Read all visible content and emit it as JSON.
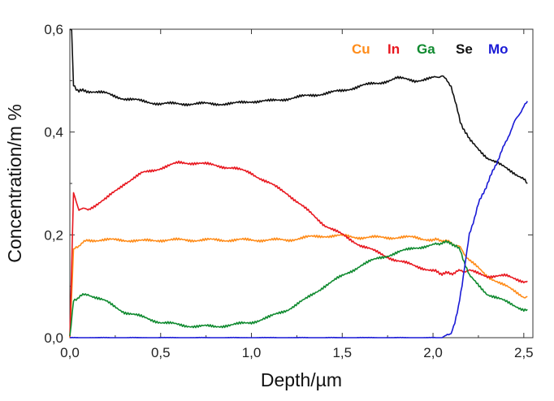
{
  "chart_data": {
    "type": "line",
    "xlabel": "Depth/µm",
    "ylabel": "Concentration/m %",
    "xlim": [
      0,
      2.55
    ],
    "ylim": [
      0,
      0.6
    ],
    "x_ticks": [
      0,
      0.5,
      1.0,
      1.5,
      2.0,
      2.5
    ],
    "x_tick_labels": [
      "0,0",
      "0,5",
      "1,0",
      "1,5",
      "2,0",
      "2,5"
    ],
    "y_ticks": [
      0,
      0.2,
      0.4,
      0.6
    ],
    "y_tick_labels": [
      "0,0",
      "0,2",
      "0,4",
      "0,6"
    ],
    "legend_position": "top-right",
    "series": [
      {
        "name": "Cu",
        "color": "#ff8c1a",
        "x": [
          0,
          0.02,
          0.05,
          0.1,
          0.2,
          0.3,
          0.4,
          0.5,
          0.6,
          0.7,
          0.8,
          0.9,
          1.0,
          1.1,
          1.2,
          1.3,
          1.4,
          1.5,
          1.6,
          1.7,
          1.8,
          1.9,
          2.0,
          2.05,
          2.1,
          2.15,
          2.2,
          2.3,
          2.4,
          2.5,
          2.52
        ],
        "y": [
          0.0,
          0.17,
          0.18,
          0.19,
          0.19,
          0.19,
          0.188,
          0.19,
          0.19,
          0.19,
          0.19,
          0.19,
          0.19,
          0.19,
          0.19,
          0.195,
          0.198,
          0.198,
          0.195,
          0.195,
          0.195,
          0.195,
          0.19,
          0.19,
          0.185,
          0.175,
          0.15,
          0.12,
          0.1,
          0.08,
          0.08
        ]
      },
      {
        "name": "In",
        "color": "#e8171f",
        "x": [
          0,
          0.02,
          0.05,
          0.1,
          0.2,
          0.3,
          0.4,
          0.5,
          0.6,
          0.7,
          0.8,
          0.9,
          1.0,
          1.1,
          1.2,
          1.3,
          1.4,
          1.5,
          1.6,
          1.7,
          1.8,
          1.9,
          2.0,
          2.05,
          2.1,
          2.15,
          2.2,
          2.3,
          2.4,
          2.5,
          2.52
        ],
        "y": [
          0.0,
          0.28,
          0.25,
          0.25,
          0.27,
          0.3,
          0.32,
          0.33,
          0.34,
          0.34,
          0.335,
          0.33,
          0.32,
          0.3,
          0.28,
          0.25,
          0.22,
          0.2,
          0.18,
          0.165,
          0.15,
          0.14,
          0.13,
          0.125,
          0.125,
          0.13,
          0.13,
          0.12,
          0.12,
          0.11,
          0.11
        ]
      },
      {
        "name": "Ga",
        "color": "#0f8a2f",
        "x": [
          0,
          0.02,
          0.05,
          0.1,
          0.2,
          0.3,
          0.4,
          0.5,
          0.6,
          0.7,
          0.8,
          0.9,
          1.0,
          1.1,
          1.2,
          1.3,
          1.4,
          1.5,
          1.6,
          1.7,
          1.8,
          1.9,
          2.0,
          2.05,
          2.1,
          2.15,
          2.2,
          2.3,
          2.4,
          2.5,
          2.52
        ],
        "y": [
          0.0,
          0.07,
          0.08,
          0.085,
          0.07,
          0.05,
          0.04,
          0.03,
          0.025,
          0.022,
          0.022,
          0.025,
          0.03,
          0.04,
          0.055,
          0.075,
          0.1,
          0.12,
          0.14,
          0.155,
          0.165,
          0.175,
          0.18,
          0.185,
          0.185,
          0.17,
          0.12,
          0.085,
          0.07,
          0.055,
          0.055
        ]
      },
      {
        "name": "Se",
        "color": "#111111",
        "x": [
          0,
          0.01,
          0.02,
          0.05,
          0.1,
          0.2,
          0.3,
          0.4,
          0.5,
          0.6,
          0.7,
          0.8,
          0.9,
          1.0,
          1.1,
          1.2,
          1.3,
          1.4,
          1.5,
          1.6,
          1.7,
          1.8,
          1.9,
          2.0,
          2.05,
          2.1,
          2.15,
          2.2,
          2.3,
          2.4,
          2.5,
          2.52
        ],
        "y": [
          0.6,
          0.6,
          0.49,
          0.48,
          0.48,
          0.475,
          0.465,
          0.46,
          0.455,
          0.455,
          0.455,
          0.455,
          0.455,
          0.46,
          0.46,
          0.465,
          0.47,
          0.475,
          0.48,
          0.49,
          0.495,
          0.505,
          0.5,
          0.505,
          0.51,
          0.49,
          0.42,
          0.385,
          0.35,
          0.33,
          0.31,
          0.3
        ]
      },
      {
        "name": "Mo",
        "color": "#1a1ad6",
        "x": [
          0,
          0.5,
          1.0,
          1.5,
          2.0,
          2.05,
          2.1,
          2.12,
          2.14,
          2.16,
          2.18,
          2.2,
          2.25,
          2.3,
          2.35,
          2.4,
          2.45,
          2.5,
          2.52
        ],
        "y": [
          0.0,
          0.0,
          0.0,
          0.0,
          0.0,
          0.0,
          0.01,
          0.03,
          0.06,
          0.1,
          0.15,
          0.2,
          0.26,
          0.3,
          0.34,
          0.38,
          0.42,
          0.45,
          0.46
        ]
      }
    ]
  }
}
